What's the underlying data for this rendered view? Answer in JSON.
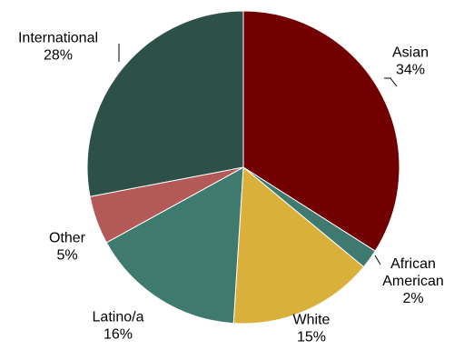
{
  "chart_data": {
    "type": "pie",
    "categories": [
      "Asian",
      "African American",
      "White",
      "Latino/a",
      "Other",
      "International"
    ],
    "values": [
      34,
      2,
      15,
      16,
      5,
      28
    ],
    "percent_labels": [
      "34%",
      "2%",
      "15%",
      "16%",
      "5%",
      "28%"
    ],
    "label_lines": [
      [
        "Asian",
        "34%"
      ],
      [
        "African",
        "American",
        "2%"
      ],
      [
        "White",
        "15%"
      ],
      [
        "Latino/a",
        "16%"
      ],
      [
        "Other",
        "5%"
      ],
      [
        "International",
        "28%"
      ]
    ],
    "colors": [
      "#720000",
      "#3e7a70",
      "#d9b03a",
      "#3f7a6f",
      "#b35a58",
      "#2d5149"
    ],
    "start_angle": "12 o'clock",
    "direction": "clockwise",
    "legend": "none"
  }
}
